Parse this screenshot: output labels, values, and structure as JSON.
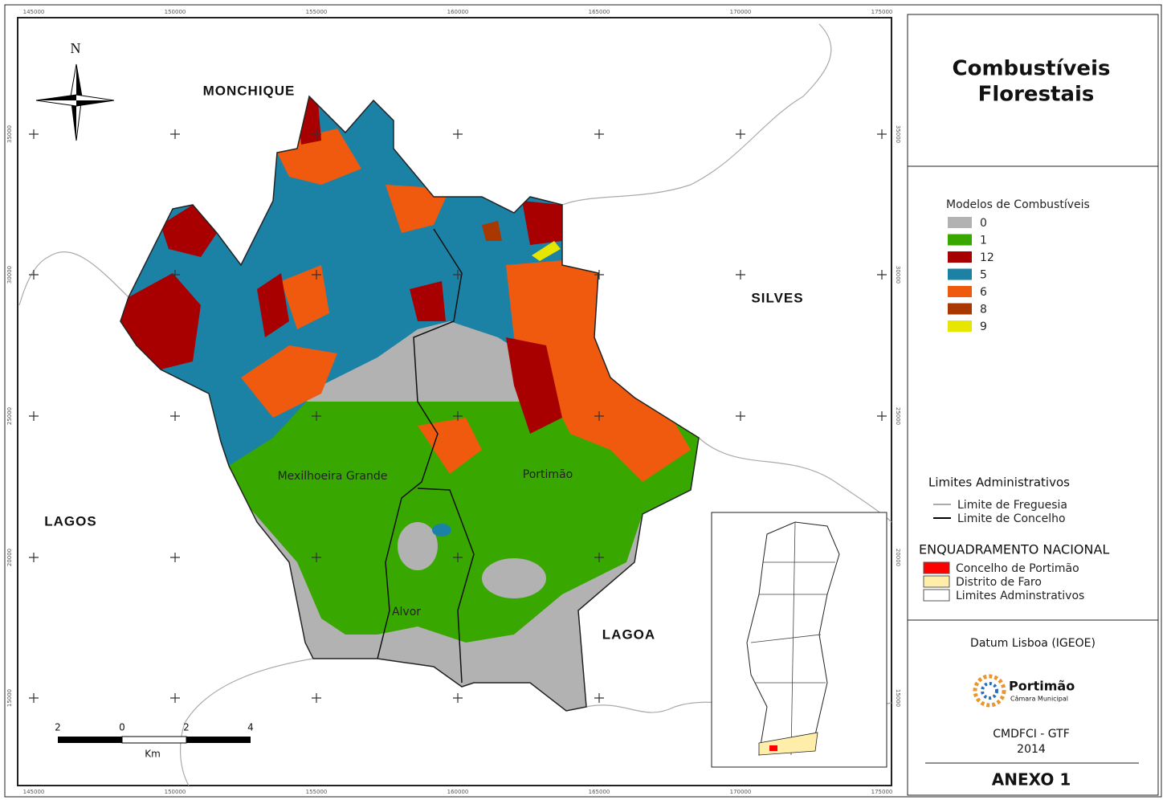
{
  "frame": {
    "x_labels": [
      "145000",
      "150000",
      "155000",
      "160000",
      "165000",
      "170000",
      "175000"
    ],
    "y_labels": [
      "35000",
      "30000",
      "25000",
      "20000",
      "15000"
    ]
  },
  "north": "N",
  "places": {
    "monchique": "MONCHIQUE",
    "silves": "SILVES",
    "lagos": "LAGOS",
    "lagoa": "LAGOA",
    "mexilhoeira": "Mexilhoeira Grande",
    "portimao": "Portimão",
    "alvor": "Alvor"
  },
  "scale": {
    "labels": [
      "2",
      "0",
      "2",
      "4"
    ],
    "unit": "Km"
  },
  "legend": {
    "title": [
      "Combustíveis",
      "Florestais"
    ],
    "models": {
      "title": "Modelos de Combustíveis",
      "items": [
        {
          "label": "0",
          "color": "#b2b2b2"
        },
        {
          "label": "1",
          "color": "#38a800"
        },
        {
          "label": "12",
          "color": "#a80000"
        },
        {
          "label": "5",
          "color": "#1b82a6"
        },
        {
          "label": "6",
          "color": "#f05a0f"
        },
        {
          "label": "8",
          "color": "#a83800"
        },
        {
          "label": "9",
          "color": "#e6e600"
        }
      ]
    },
    "limits": {
      "title": "Limites Administrativos",
      "items": [
        "Limite de Freguesia",
        "Limite de Concelho"
      ]
    },
    "national": {
      "title": "ENQUADRAMENTO NACIONAL",
      "items": [
        {
          "label": "Concelho de Portimão",
          "color": "#ff0000"
        },
        {
          "label": "Distrito de Faro",
          "color": "#ffeeaa"
        },
        {
          "label": "Limites Adminstrativos",
          "color": "#ffffff"
        }
      ]
    },
    "datum": "Datum Lisboa (IGEOE)",
    "logo": {
      "name": "Portimão",
      "subtitle": "Câmara Municipal"
    },
    "credit": "CMDFCI - GTF",
    "year": "2014",
    "annex": "ANEXO 1"
  }
}
